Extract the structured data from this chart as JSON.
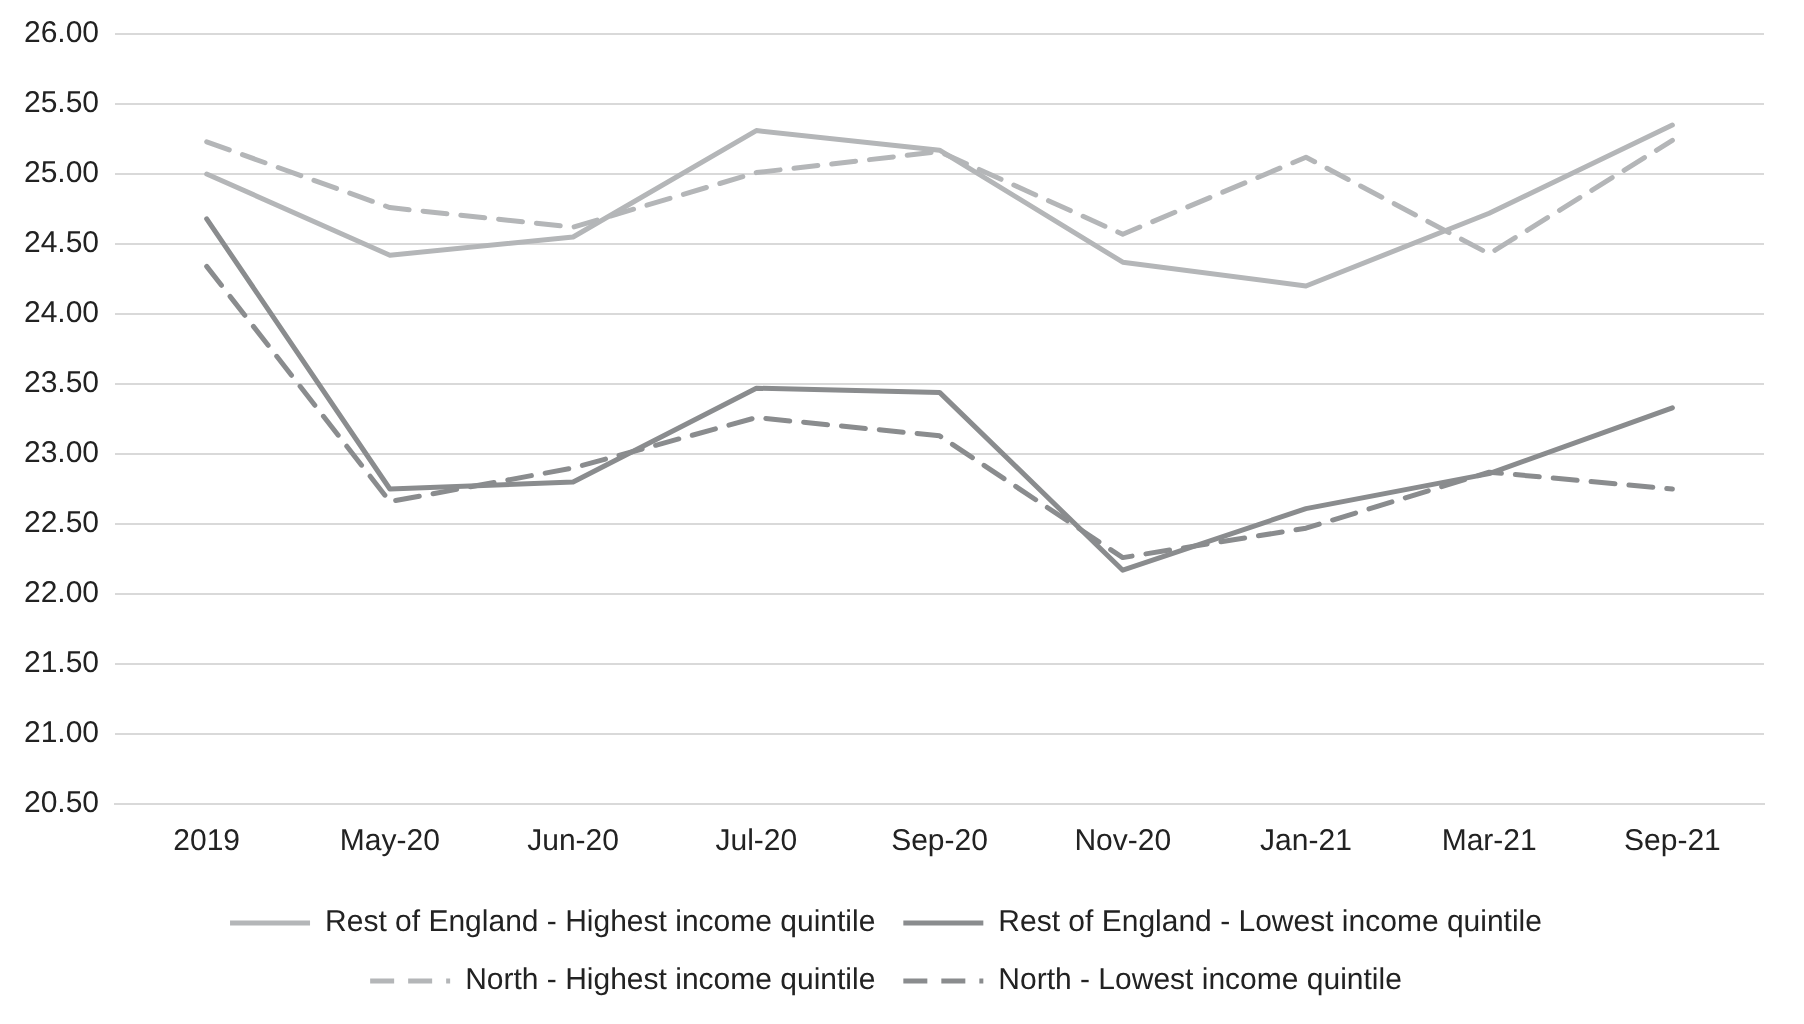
{
  "chart_data": {
    "type": "line",
    "categories": [
      "2019",
      "May-20",
      "Jun-20",
      "Jul-20",
      "Sep-20",
      "Nov-20",
      "Jan-21",
      "Mar-21",
      "Sep-21"
    ],
    "series": [
      {
        "name": "Rest of England - Highest income quintile",
        "color": "#b4b6b8",
        "line_style": "solid",
        "values": [
          25.0,
          24.42,
          24.55,
          25.31,
          25.17,
          24.37,
          24.2,
          24.72,
          25.35
        ]
      },
      {
        "name": "Rest of England - Lowest income quintile",
        "color": "#8a8c8e",
        "line_style": "solid",
        "values": [
          24.68,
          22.75,
          22.8,
          23.47,
          23.44,
          22.17,
          22.61,
          22.86,
          23.33
        ]
      },
      {
        "name": "North - Highest income quintile",
        "color": "#b4b6b8",
        "line_style": "dashed",
        "values": [
          25.23,
          24.76,
          24.62,
          25.01,
          25.16,
          24.57,
          25.12,
          24.43,
          25.24
        ]
      },
      {
        "name": "North - Lowest income quintile",
        "color": "#8a8c8e",
        "line_style": "dashed",
        "values": [
          24.34,
          22.66,
          22.9,
          23.26,
          23.13,
          22.26,
          22.47,
          22.87,
          22.75
        ]
      }
    ],
    "ylim": [
      20.5,
      26
    ],
    "yticks": [
      {
        "value": 20.5,
        "label": "20.50"
      },
      {
        "value": 21,
        "label": "21.00"
      },
      {
        "value": 21.5,
        "label": "21.50"
      },
      {
        "value": 22,
        "label": "22.00"
      },
      {
        "value": 22.5,
        "label": "22.50"
      },
      {
        "value": 23,
        "label": "23.00"
      },
      {
        "value": 23.5,
        "label": "23.50"
      },
      {
        "value": 24,
        "label": "24.00"
      },
      {
        "value": 24.5,
        "label": "24.50"
      },
      {
        "value": 25,
        "label": "25.00"
      },
      {
        "value": 25.5,
        "label": "25.50"
      },
      {
        "value": 26,
        "label": "26.00"
      }
    ],
    "grid": "y",
    "legend": "bottom",
    "marker": "none"
  }
}
